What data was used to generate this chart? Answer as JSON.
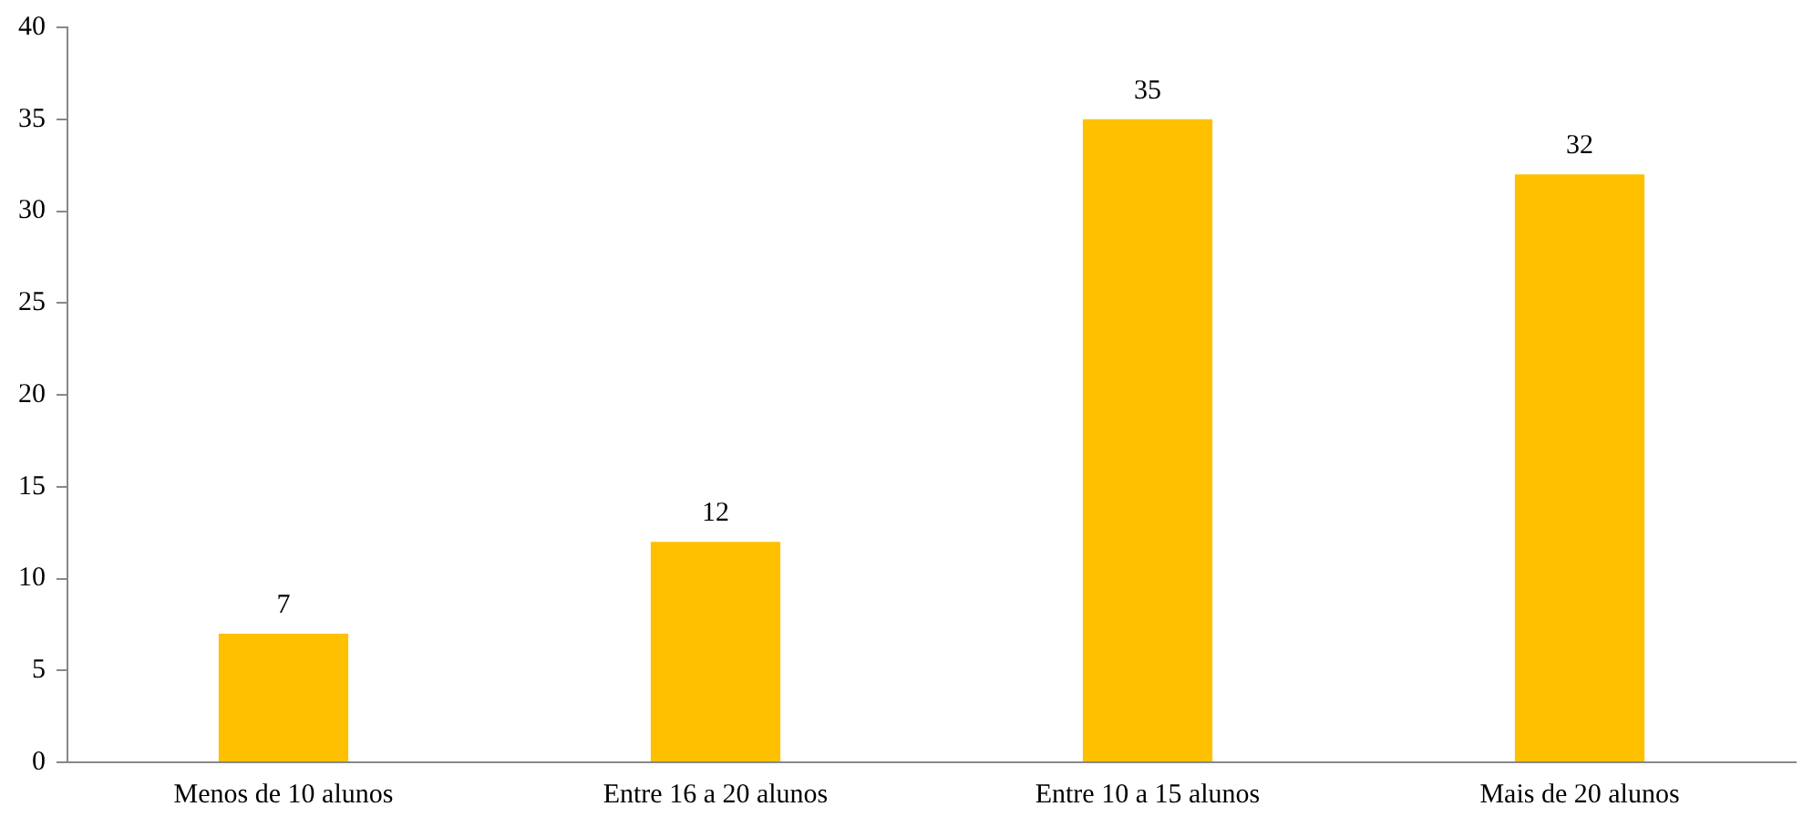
{
  "chart_data": {
    "type": "bar",
    "categories": [
      "Menos de 10 alunos",
      "Entre 16 a 20 alunos",
      "Entre 10 a 15 alunos",
      "Mais de 20 alunos"
    ],
    "values": [
      7,
      12,
      35,
      32
    ],
    "color": "#ffc000",
    "ylim": [
      0,
      40
    ],
    "yticks": [
      0,
      5,
      10,
      15,
      20,
      25,
      30,
      35,
      40
    ],
    "grid": false,
    "legend": false,
    "data_labels": true
  }
}
